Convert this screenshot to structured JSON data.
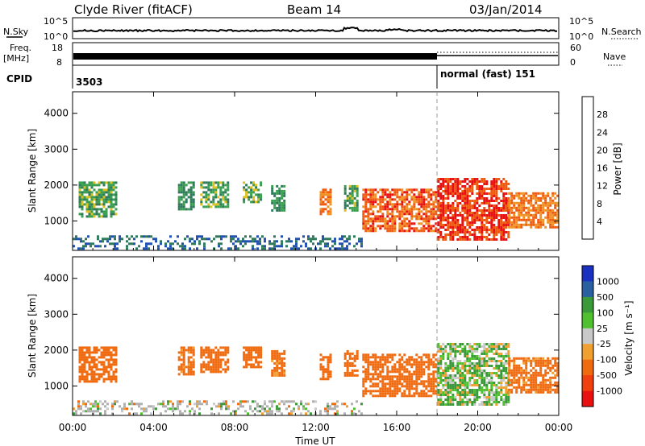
{
  "header": {
    "station": "Clyde River (fitACF)",
    "beam": "Beam 14",
    "date": "03/Jan/2014"
  },
  "summary_panels": {
    "nsky_label": "N.Sky",
    "nsearch_label": "N.Search",
    "nsky_ticks": [
      "10^5",
      "10^0"
    ],
    "nsearch_ticks": [
      "10^5",
      "10^0"
    ],
    "freq_label_line1": "Freq.",
    "freq_label_line2": "[MHz]",
    "freq_ticks": [
      "18",
      "8"
    ],
    "nave_label": "Nave",
    "nave_ticks": [
      "60",
      "0"
    ],
    "cpid_label": "CPID",
    "cpid_left": "3503",
    "cpid_right": "normal (fast) 151"
  },
  "colors": {
    "power_scale": [
      "#1010e8",
      "#2050b0",
      "#2e7a5a",
      "#3aa050",
      "#e0c020",
      "#f09020",
      "#f05a10",
      "#e81010"
    ],
    "velocity_scale": [
      "#e81010",
      "#f04010",
      "#f06a10",
      "#f0a030",
      "#c8c8c8",
      "#50c030",
      "#3a9a3a",
      "#2a60a0",
      "#1a30c0"
    ],
    "ground_scatter": "#b0b0b0"
  },
  "chart_data": [
    {
      "type": "heatmap",
      "name": "power",
      "ylabel": "Slant Range [km]",
      "colorbar_label": "Power [dB]",
      "colorbar_ticks": [
        "28",
        "24",
        "20",
        "16",
        "12",
        "8",
        "4"
      ],
      "x_ticks": [
        "00:00",
        "04:00",
        "08:00",
        "12:00",
        "16:00",
        "20:00",
        "00:00"
      ],
      "y_ticks": [
        "4000",
        "3000",
        "2000",
        "1000"
      ],
      "xlim_hours": [
        0,
        24
      ],
      "ylim_km": [
        180,
        4600
      ],
      "echo_regions": [
        {
          "t0": 0.3,
          "t1": 2.2,
          "r0": 1100,
          "r1": 2100,
          "value": 14
        },
        {
          "t0": 5.2,
          "t1": 6.0,
          "r0": 1300,
          "r1": 2100,
          "value": 12
        },
        {
          "t0": 6.3,
          "t1": 7.7,
          "r0": 1400,
          "r1": 2100,
          "value": 14
        },
        {
          "t0": 8.4,
          "t1": 9.3,
          "r0": 1500,
          "r1": 2100,
          "value": 14
        },
        {
          "t0": 9.8,
          "t1": 10.4,
          "r0": 1300,
          "r1": 2000,
          "value": 12
        },
        {
          "t0": 12.2,
          "t1": 12.7,
          "r0": 1200,
          "r1": 1900,
          "value": 24
        },
        {
          "t0": 13.4,
          "t1": 14.1,
          "r0": 1300,
          "r1": 2000,
          "value": 14
        },
        {
          "t0": 14.3,
          "t1": 18.0,
          "r0": 700,
          "r1": 1900,
          "value": 26
        },
        {
          "t0": 18.0,
          "t1": 21.5,
          "r0": 500,
          "r1": 2200,
          "value": 28
        },
        {
          "t0": 21.5,
          "t1": 24.0,
          "r0": 800,
          "r1": 1800,
          "value": 24
        },
        {
          "t0": 0.0,
          "t1": 14.3,
          "r0": 200,
          "r1": 600,
          "value": 8
        }
      ]
    },
    {
      "type": "heatmap",
      "name": "velocity",
      "ylabel": "Slant Range [km]",
      "xlabel": "Time UT",
      "colorbar_label": "Velocity [m s⁻¹]",
      "colorbar_ticks": [
        "1000",
        "500",
        "100",
        "25",
        "-25",
        "-100",
        "-500",
        "-1000"
      ],
      "x_ticks": [
        "00:00",
        "04:00",
        "08:00",
        "12:00",
        "16:00",
        "20:00",
        "00:00"
      ],
      "y_ticks": [
        "4000",
        "3000",
        "2000",
        "1000"
      ],
      "xlim_hours": [
        0,
        24
      ],
      "ylim_km": [
        180,
        4600
      ],
      "echo_regions": [
        {
          "t0": 0.3,
          "t1": 2.2,
          "r0": 1100,
          "r1": 2100,
          "value": -300
        },
        {
          "t0": 5.2,
          "t1": 6.0,
          "r0": 1300,
          "r1": 2100,
          "value": -200
        },
        {
          "t0": 6.3,
          "t1": 7.7,
          "r0": 1400,
          "r1": 2100,
          "value": -300
        },
        {
          "t0": 8.4,
          "t1": 9.3,
          "r0": 1500,
          "r1": 2100,
          "value": -300
        },
        {
          "t0": 9.8,
          "t1": 10.4,
          "r0": 1300,
          "r1": 2000,
          "value": -200
        },
        {
          "t0": 12.2,
          "t1": 12.7,
          "r0": 1200,
          "r1": 1900,
          "value": -300
        },
        {
          "t0": 13.4,
          "t1": 14.1,
          "r0": 1300,
          "r1": 2000,
          "value": -300
        },
        {
          "t0": 14.3,
          "t1": 18.0,
          "r0": 700,
          "r1": 1900,
          "value": -300
        },
        {
          "t0": 18.0,
          "t1": 21.5,
          "r0": 500,
          "r1": 2200,
          "value": 60
        },
        {
          "t0": 21.5,
          "t1": 24.0,
          "r0": 800,
          "r1": 1800,
          "value": -200
        },
        {
          "t0": 0.0,
          "t1": 14.3,
          "r0": 200,
          "r1": 600,
          "value": 0
        }
      ]
    }
  ]
}
